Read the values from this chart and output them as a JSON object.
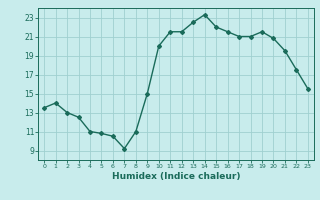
{
  "x": [
    0,
    1,
    2,
    3,
    4,
    5,
    6,
    7,
    8,
    9,
    10,
    11,
    12,
    13,
    14,
    15,
    16,
    17,
    18,
    19,
    20,
    21,
    22,
    23
  ],
  "y": [
    13.5,
    14.0,
    13.0,
    12.5,
    11.0,
    10.8,
    10.5,
    9.2,
    11.0,
    15.0,
    20.0,
    21.5,
    21.5,
    22.5,
    23.3,
    22.0,
    21.5,
    21.0,
    21.0,
    21.5,
    20.8,
    19.5,
    17.5,
    15.5
  ],
  "color": "#1a6b5a",
  "bg_color": "#c8ecec",
  "grid_color": "#a0d0d0",
  "xlabel": "Humidex (Indice chaleur)",
  "ylim": [
    8,
    24
  ],
  "xlim": [
    -0.5,
    23.5
  ],
  "yticks": [
    9,
    11,
    13,
    15,
    17,
    19,
    21,
    23
  ],
  "xticks": [
    0,
    1,
    2,
    3,
    4,
    5,
    6,
    7,
    8,
    9,
    10,
    11,
    12,
    13,
    14,
    15,
    16,
    17,
    18,
    19,
    20,
    21,
    22,
    23
  ],
  "marker": "D",
  "markersize": 2.0,
  "linewidth": 1.0,
  "tick_fontsize": 5.5,
  "xlabel_fontsize": 6.5
}
